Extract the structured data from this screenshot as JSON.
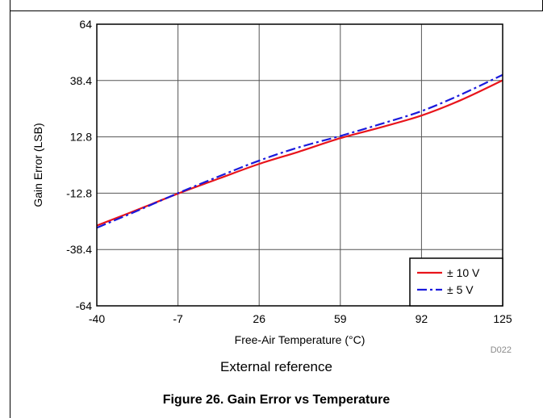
{
  "chart_data": {
    "type": "line",
    "xlabel": "Free-Air Temperature (°C)",
    "ylabel": "Gain Error (LSB)",
    "xlim": [
      -40,
      125
    ],
    "ylim": [
      -64,
      64
    ],
    "xticks": [
      -40,
      -7,
      26,
      59,
      92,
      125
    ],
    "yticks": [
      -64,
      -38.4,
      -12.8,
      12.8,
      38.4,
      64
    ],
    "grid": true,
    "legend_position": "bottom-right",
    "series": [
      {
        "name": "± 10 V",
        "color": "#e8141b",
        "style": "solid",
        "x": [
          -40,
          -25,
          -7,
          10,
          26,
          42,
          59,
          75,
          92,
          108,
          125
        ],
        "y": [
          -27.5,
          -21,
          -13,
          -6,
          0.5,
          6,
          12.2,
          17,
          22.5,
          29.5,
          38.5
        ]
      },
      {
        "name": "± 5 V",
        "color": "#1a1adc",
        "style": "dashdot",
        "x": [
          -40,
          -25,
          -7,
          10,
          26,
          42,
          59,
          75,
          92,
          108,
          125
        ],
        "y": [
          -28.5,
          -21.5,
          -12.8,
          -5,
          2,
          8,
          13.2,
          18.5,
          24.5,
          32,
          41
        ]
      }
    ],
    "watermark": "D022"
  },
  "subcaption": "External reference",
  "figcaption": "Figure 26. Gain Error vs Temperature"
}
